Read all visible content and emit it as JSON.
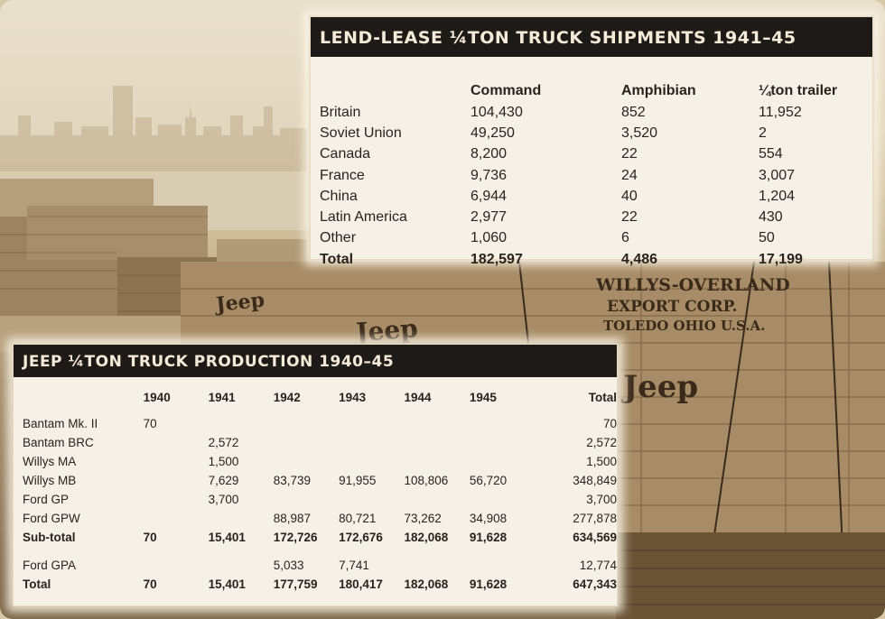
{
  "lend_lease": {
    "title": "LEND-LEASE ¼TON TRUCK SHIPMENTS 1941–45",
    "headers": [
      "",
      "Command",
      "Amphibian",
      "¼ton trailer"
    ],
    "rows": [
      [
        "Britain",
        "104,430",
        "852",
        "11,952"
      ],
      [
        "Soviet Union",
        "49,250",
        "3,520",
        "2"
      ],
      [
        "Canada",
        "8,200",
        "22",
        "554"
      ],
      [
        "France",
        "9,736",
        "24",
        "3,007"
      ],
      [
        "China",
        "6,944",
        "40",
        "1,204"
      ],
      [
        "Latin America",
        "2,977",
        "22",
        "430"
      ],
      [
        "Other",
        "1,060",
        "6",
        "50"
      ]
    ],
    "total": [
      "Total",
      "182,597",
      "4,486",
      "17,199"
    ]
  },
  "production": {
    "title": "JEEP ¼TON TRUCK PRODUCTION 1940–45",
    "headers": [
      "",
      "1940",
      "1941",
      "1942",
      "1943",
      "1944",
      "1945",
      "Total"
    ],
    "rows": [
      [
        "Bantam Mk. II",
        "70",
        "",
        "",
        "",
        "",
        "",
        "70"
      ],
      [
        "Bantam BRC",
        "",
        "2,572",
        "",
        "",
        "",
        "",
        "2,572"
      ],
      [
        "Willys MA",
        "",
        "1,500",
        "",
        "",
        "",
        "",
        "1,500"
      ],
      [
        "Willys MB",
        "",
        "7,629",
        "83,739",
        "91,955",
        "108,806",
        "56,720",
        "348,849"
      ],
      [
        "Ford GP",
        "",
        "3,700",
        "",
        "",
        "",
        "",
        "3,700"
      ],
      [
        "Ford GPW",
        "",
        "",
        "88,987",
        "80,721",
        "73,262",
        "34,908",
        "277,878"
      ]
    ],
    "subtotal": [
      "Sub-total",
      "70",
      "15,401",
      "172,726",
      "172,676",
      "182,068",
      "91,628",
      "634,569"
    ],
    "ford_gpa": [
      "Ford GPA",
      "",
      "",
      "5,033",
      "7,741",
      "",
      "",
      "12,774"
    ],
    "total": [
      "Total",
      "70",
      "15,401",
      "177,759",
      "180,417",
      "182,068",
      "91,628",
      "647,343"
    ]
  },
  "photo": {
    "crate_stencils": [
      "WILLYS-OVERLAND",
      "EXPORT CORP.",
      "TOLEDO OHIO U.S.A.",
      "Jeep"
    ]
  }
}
